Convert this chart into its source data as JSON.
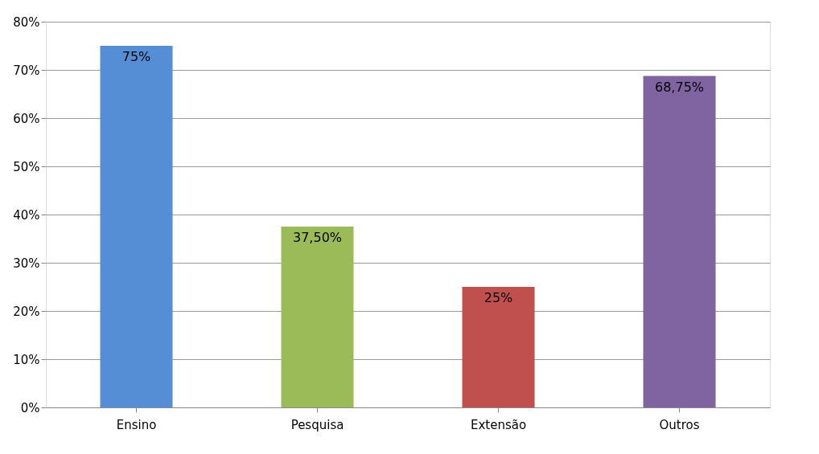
{
  "chart_data": {
    "type": "bar",
    "categories": [
      "Ensino",
      "Pesquisa",
      "Extensão",
      "Outros"
    ],
    "values": [
      75,
      37.5,
      25,
      68.75
    ],
    "colors": [
      "#558ed5",
      "#9bbb59",
      "#c0504d",
      "#8064a2"
    ],
    "value_labels": [
      "75%",
      "37,50%",
      "25%",
      "68,75%"
    ],
    "ylim": [
      0,
      80
    ],
    "yticks": [
      {
        "value": 0,
        "label": "0%"
      },
      {
        "value": 10,
        "label": "10%"
      },
      {
        "value": 20,
        "label": "20%"
      },
      {
        "value": 30,
        "label": "30%"
      },
      {
        "value": 40,
        "label": "40%"
      },
      {
        "value": 50,
        "label": "50%"
      },
      {
        "value": 60,
        "label": "60%"
      },
      {
        "value": 70,
        "label": "70%"
      },
      {
        "value": 80,
        "label": "80%"
      }
    ],
    "grid": "y"
  }
}
